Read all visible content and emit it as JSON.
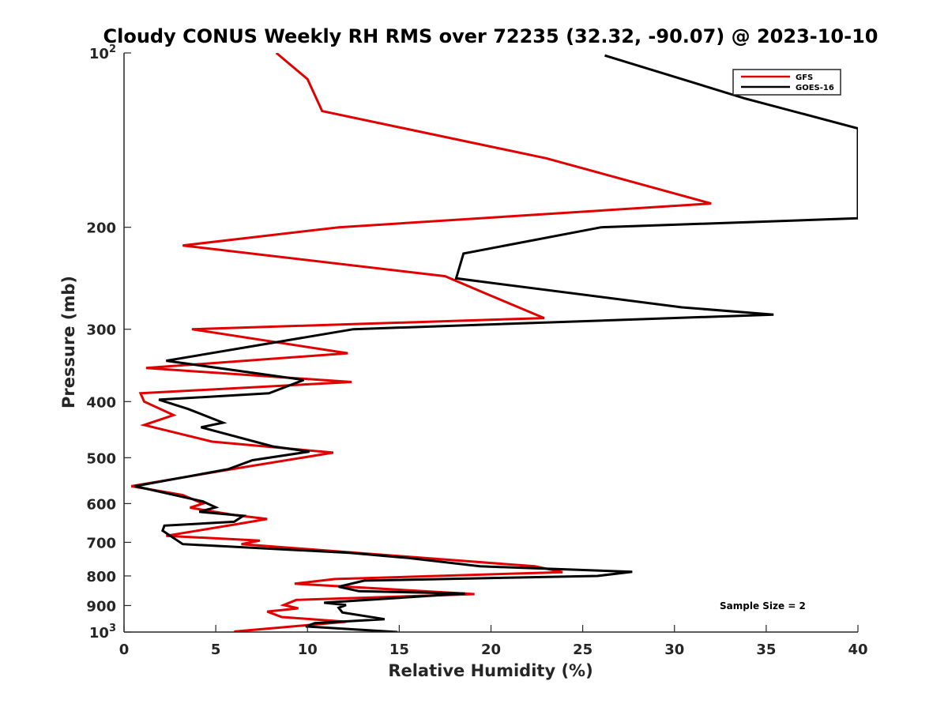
{
  "chart_data": {
    "type": "line",
    "title": "Cloudy CONUS Weekly RH RMS over 72235 (32.32, -90.07) @ 2023-10-10",
    "xlabel": "Relative Humidity (%)",
    "ylabel": "Pressure (mb)",
    "xlim": [
      0,
      40
    ],
    "ylim": [
      100,
      1000
    ],
    "yscale": "log",
    "y_reversed": true,
    "grid": false,
    "legend_position": "top-right",
    "x_ticks": [
      "0",
      "5",
      "10",
      "15",
      "20",
      "25",
      "30",
      "35",
      "40"
    ],
    "x_tick_values": [
      0,
      5,
      10,
      15,
      20,
      25,
      30,
      35,
      40
    ],
    "y_ticks": [
      {
        "value": 100,
        "base": "10",
        "exp": "2"
      },
      {
        "value": 200,
        "label": "200"
      },
      {
        "value": 300,
        "label": "300"
      },
      {
        "value": 400,
        "label": "400"
      },
      {
        "value": 500,
        "label": "500"
      },
      {
        "value": 600,
        "label": "600"
      },
      {
        "value": 700,
        "label": "700"
      },
      {
        "value": 800,
        "label": "800"
      },
      {
        "value": 900,
        "label": "900"
      },
      {
        "value": 1000,
        "base": "10",
        "exp": "3"
      }
    ],
    "annotation": "Sample Size = 2",
    "series": [
      {
        "name": "GFS",
        "color": "#e00000",
        "points": [
          [
            8.3,
            100
          ],
          [
            10,
            111
          ],
          [
            10.8,
            126
          ],
          [
            23,
            152
          ],
          [
            32,
            182
          ],
          [
            11.7,
            200
          ],
          [
            3.2,
            215
          ],
          [
            17.5,
            243
          ],
          [
            19.8,
            261
          ],
          [
            22.9,
            287
          ],
          [
            3.7,
            300
          ],
          [
            12.2,
            330
          ],
          [
            1.2,
            350
          ],
          [
            12.4,
            370
          ],
          [
            0.9,
            387
          ],
          [
            1.1,
            400
          ],
          [
            2.7,
            422
          ],
          [
            1.1,
            439
          ],
          [
            4.8,
            469
          ],
          [
            11.4,
            490
          ],
          [
            5.6,
            525
          ],
          [
            0.4,
            560
          ],
          [
            3.2,
            580
          ],
          [
            4.3,
            600
          ],
          [
            3.6,
            610
          ],
          [
            6,
            628
          ],
          [
            7.8,
            638
          ],
          [
            6.3,
            650
          ],
          [
            2.3,
            682
          ],
          [
            7.4,
            695
          ],
          [
            6.4,
            705
          ],
          [
            22.4,
            770
          ],
          [
            23.9,
            788
          ],
          [
            11.5,
            810
          ],
          [
            9.3,
            825
          ],
          [
            19.1,
            860
          ],
          [
            9.4,
            880
          ],
          [
            8.7,
            898
          ],
          [
            9.5,
            910
          ],
          [
            7.8,
            922
          ],
          [
            8.6,
            942
          ],
          [
            12.1,
            960
          ],
          [
            6,
            998
          ]
        ]
      },
      {
        "name": "GOES-16",
        "color": "#000000",
        "points": [
          [
            26.2,
            101
          ],
          [
            33.9,
            120
          ],
          [
            40,
            135
          ],
          [
            40,
            193
          ],
          [
            26,
            200
          ],
          [
            18.5,
            222
          ],
          [
            18.1,
            245
          ],
          [
            30.4,
            275
          ],
          [
            35.4,
            283
          ],
          [
            12.5,
            300
          ],
          [
            2.3,
            340
          ],
          [
            9.8,
            367
          ],
          [
            7.9,
            387
          ],
          [
            1.9,
            397
          ],
          [
            3.5,
            412
          ],
          [
            5.4,
            435
          ],
          [
            4.2,
            443
          ],
          [
            8.1,
            478
          ],
          [
            10.1,
            488
          ],
          [
            7,
            505
          ],
          [
            5.7,
            523
          ],
          [
            0.6,
            560
          ],
          [
            4.3,
            595
          ],
          [
            5,
            609
          ],
          [
            4.1,
            620
          ],
          [
            6.5,
            630
          ],
          [
            6,
            645
          ],
          [
            2.2,
            655
          ],
          [
            2.1,
            668
          ],
          [
            3.2,
            705
          ],
          [
            12.3,
            730
          ],
          [
            15.5,
            745
          ],
          [
            19.4,
            770
          ],
          [
            27.7,
            787
          ],
          [
            25.8,
            800
          ],
          [
            13.1,
            815
          ],
          [
            11.7,
            835
          ],
          [
            12.8,
            850
          ],
          [
            18.6,
            858
          ],
          [
            10.9,
            890
          ],
          [
            12.1,
            898
          ],
          [
            11.7,
            908
          ],
          [
            11.9,
            925
          ],
          [
            14.2,
            950
          ],
          [
            10.4,
            965
          ],
          [
            9.9,
            978
          ],
          [
            14.9,
            1000
          ]
        ]
      }
    ]
  }
}
